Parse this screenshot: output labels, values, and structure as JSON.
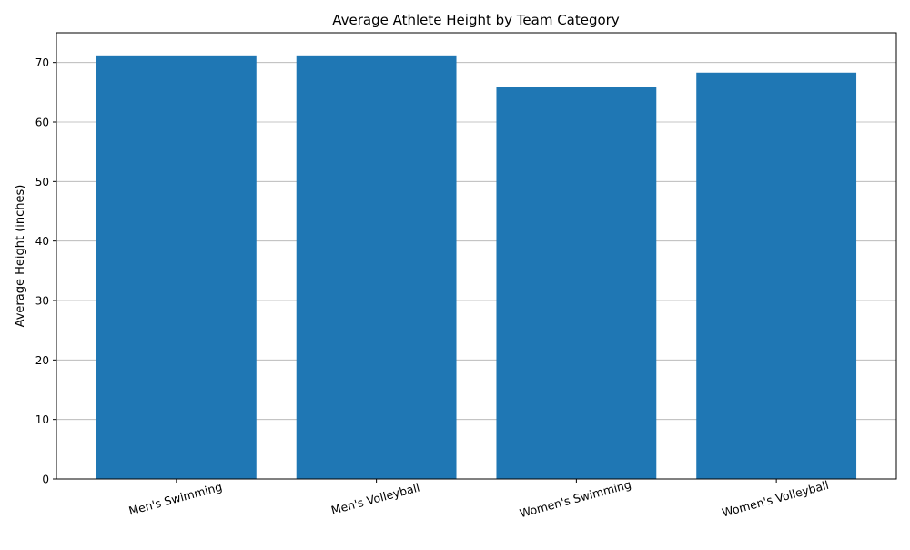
{
  "chart_data": {
    "type": "bar",
    "title": "Average Athlete Height by Team Category",
    "xlabel": "",
    "ylabel": "Average Height (inches)",
    "categories": [
      "Men's Swimming",
      "Men's Volleyball",
      "Women's Swimming",
      "Women's Volleyball"
    ],
    "values": [
      71.2,
      71.2,
      65.9,
      68.3
    ],
    "ylim": [
      0,
      75
    ],
    "yticks": [
      0,
      10,
      20,
      30,
      40,
      50,
      60,
      70
    ],
    "grid": "y",
    "bar_color": "#1f77b4",
    "grid_color": "#b0b0b0"
  }
}
